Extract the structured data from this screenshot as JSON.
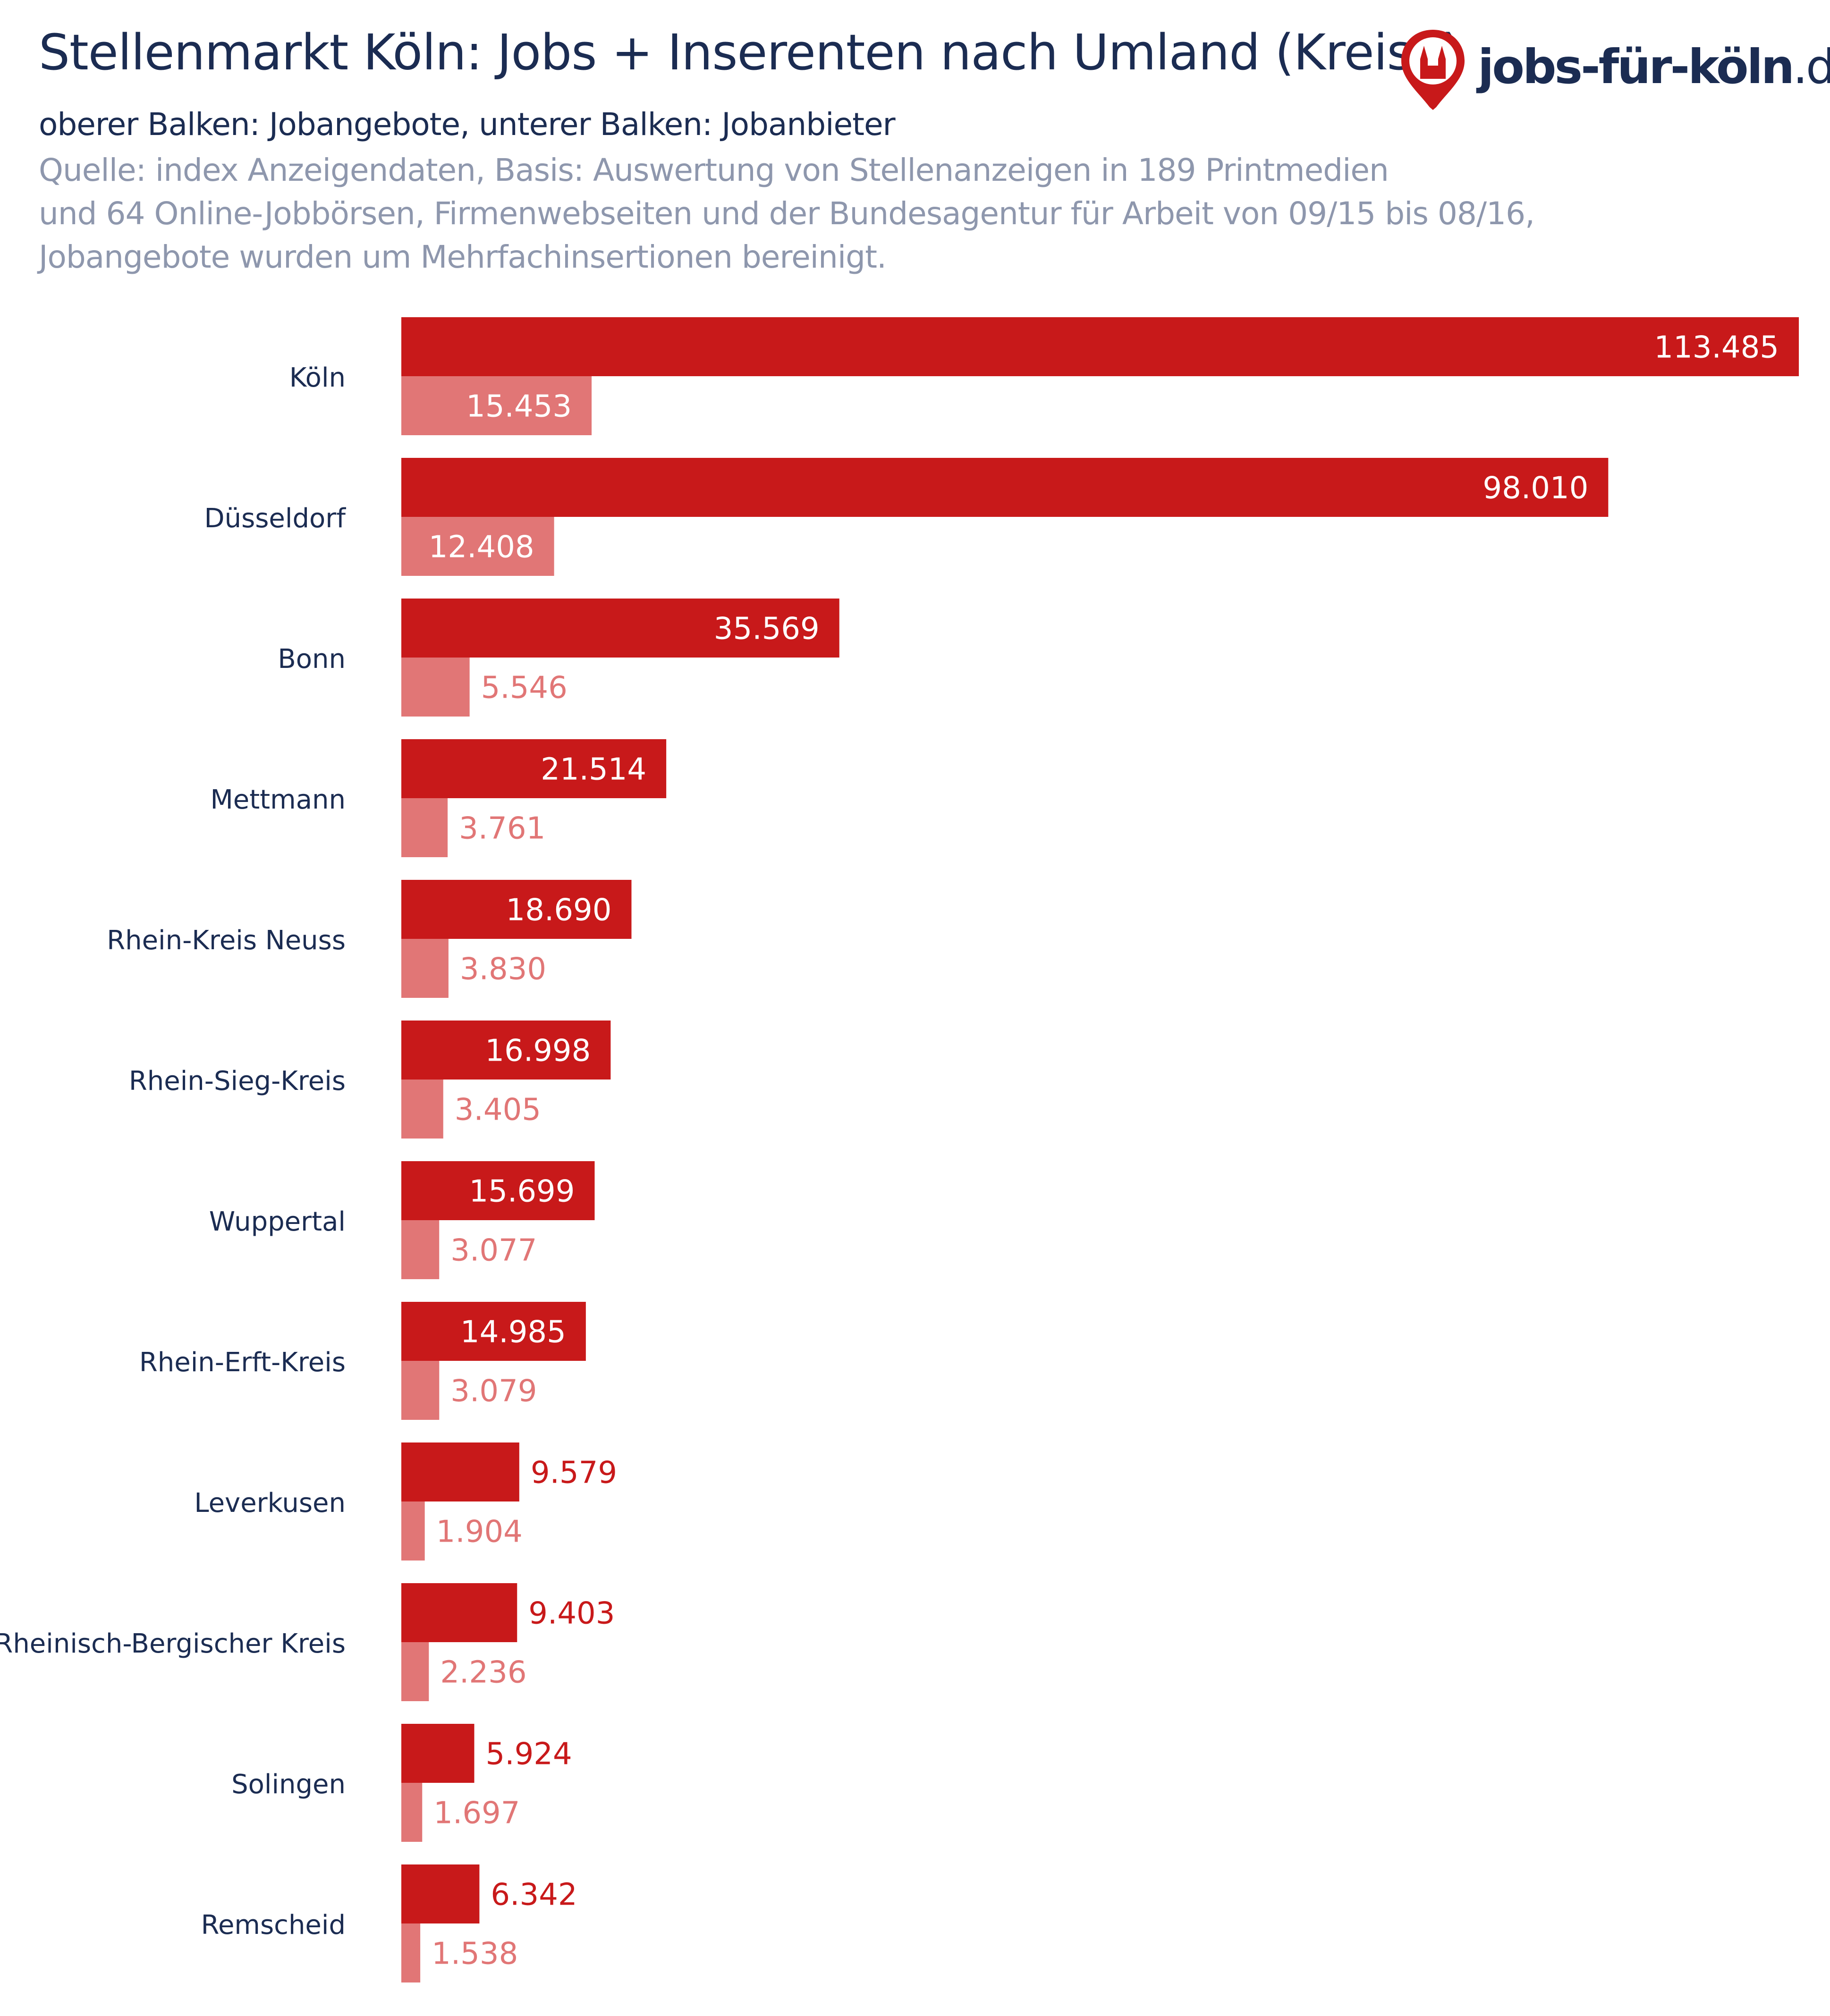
{
  "header": {
    "title": "Stellenmarkt Köln: Jobs + Inserenten nach Umland (Kreise)",
    "subtitle": "oberer Balken: Jobangebote, unterer Balken: Jobanbieter",
    "source_lines": [
      "Quelle: index Anzeigendaten, Basis: Auswertung von Stellenanzeigen in 189 Printmedien",
      "und 64 Online-Jobbörsen, Firmenwebseiten und der Bundesagentur für Arbeit von 09/15 bis 08/16,",
      "Jobangebote wurden um Mehrfachinsertionen bereinigt."
    ]
  },
  "logo": {
    "text": "jobs-für-köln",
    "tld": ".de",
    "icon": "cathedral-pin-icon",
    "color": "#c8191a"
  },
  "colors": {
    "primary_bar": "#c8191a",
    "secondary_bar": "#e17676",
    "label_inside": "#ffffff",
    "text_dark": "#1b2c52",
    "text_muted": "#8e97ad"
  },
  "chart_data": {
    "type": "bar",
    "orientation": "horizontal",
    "categories": [
      "Köln",
      "Düsseldorf",
      "Bonn",
      "Mettmann",
      "Rhein-Kreis Neuss",
      "Rhein-Sieg-Kreis",
      "Wuppertal",
      "Rhein-Erft-Kreis",
      "Leverkusen",
      "Rheinisch-Bergischer Kreis",
      "Solingen",
      "Remscheid"
    ],
    "series": [
      {
        "values": [
          113485,
          98010,
          35569,
          21514,
          18690,
          16998,
          15699,
          14985,
          9579,
          9403,
          5924,
          6342
        ],
        "labels": [
          "113.485",
          "98.010",
          "35.569",
          "21.514",
          "18.690",
          "16.998",
          "15.699",
          "14.985",
          "9.579",
          "9.403",
          "5.924",
          "6.342"
        ]
      },
      {
        "values": [
          15453,
          12408,
          5546,
          3761,
          3830,
          3405,
          3077,
          3079,
          1904,
          2236,
          1697,
          1538
        ],
        "labels": [
          "15.453",
          "12.408",
          "5.546",
          "3.761",
          "3.830",
          "3.405",
          "3.077",
          "3.079",
          "1.904",
          "2.236",
          "1.697",
          "1.538"
        ]
      }
    ],
    "grid": false,
    "axes_visible": false
  }
}
